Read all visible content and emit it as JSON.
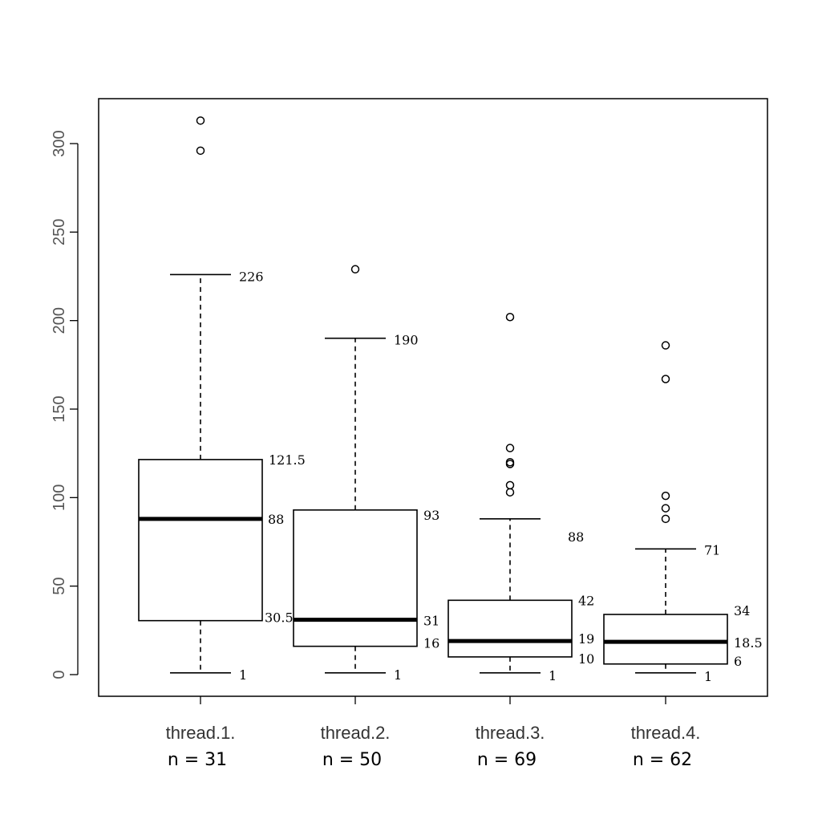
{
  "chart_data": {
    "type": "boxplot",
    "title": "",
    "xlabel": "",
    "ylabel": "",
    "ylim": [
      -12,
      325
    ],
    "yticks": [
      0,
      50,
      100,
      150,
      200,
      250,
      300
    ],
    "grid": false,
    "categories": [
      "thread.1.",
      "thread.2.",
      "thread.3.",
      "thread.4."
    ],
    "sample_sizes": [
      "n = 31",
      "n = 50",
      "n = 69",
      "n = 62"
    ],
    "boxes": [
      {
        "category": "thread.1.",
        "whisker_low": 1,
        "q1": 30.5,
        "median": 88,
        "q3": 121.5,
        "whisker_high": 226,
        "outliers": [
          296,
          313
        ],
        "labels": {
          "whisker_low": "1",
          "q1": "30.5",
          "median": "88",
          "q3": "121.5",
          "whisker_high": "226"
        }
      },
      {
        "category": "thread.2.",
        "whisker_low": 1,
        "q1": 16,
        "median": 31,
        "q3": 93,
        "whisker_high": 190,
        "outliers": [
          229
        ],
        "labels": {
          "whisker_low": "1",
          "q1": "16",
          "median": "31",
          "q3": "93",
          "whisker_high": "190"
        }
      },
      {
        "category": "thread.3.",
        "whisker_low": 1,
        "q1": 10,
        "median": 19,
        "q3": 42,
        "whisker_high": 88,
        "outliers": [
          103,
          107,
          119,
          120,
          128,
          202
        ],
        "labels": {
          "whisker_low": "1",
          "q1": "10",
          "median": "19",
          "q3": "42",
          "whisker_high": "88"
        }
      },
      {
        "category": "thread.4.",
        "whisker_low": 1,
        "q1": 6,
        "median": 18.5,
        "q3": 34,
        "whisker_high": 71,
        "outliers": [
          88,
          94,
          101,
          167,
          186
        ],
        "labels": {
          "whisker_low": "1",
          "q1": "6",
          "median": "18.5",
          "q3": "34",
          "whisker_high": "71"
        }
      }
    ]
  }
}
